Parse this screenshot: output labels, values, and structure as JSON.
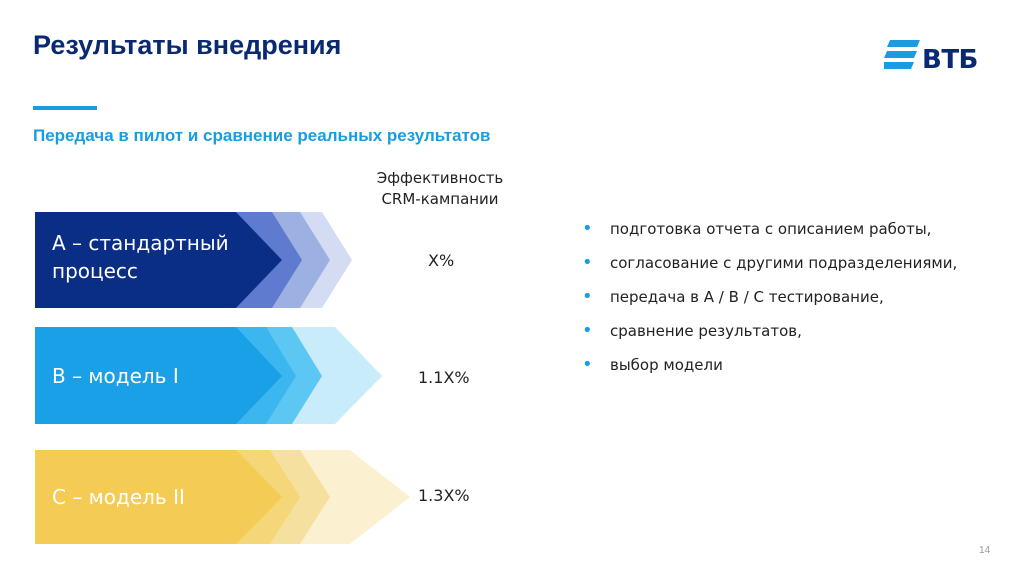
{
  "slide": {
    "title": "Результаты внедрения",
    "subtitle": "Передача в пилот и сравнение реальных результатов",
    "logo_text": "ВТБ",
    "column_header": [
      "Эффективность",
      "CRM-кампании"
    ],
    "rows": [
      {
        "label_lines": [
          "А – стандартный",
          "процесс"
        ],
        "value": "X%",
        "color": "#0a2e86"
      },
      {
        "label_lines": [
          "В – модель I"
        ],
        "value": "1.1X%",
        "color": "#1aa0e6"
      },
      {
        "label_lines": [
          "С – модель II"
        ],
        "value": "1.3X%",
        "color": "#f3cb55"
      }
    ],
    "bullets": [
      "подготовка отчета с описанием работы,",
      "согласование с другими подразделениями,",
      "передача в А / В / С тестирование,",
      "сравнение результатов,",
      "выбор модели"
    ],
    "page_number": "14",
    "colors": {
      "brand_dark": "#0a2973",
      "brand_light": "#1a9de0"
    }
  }
}
